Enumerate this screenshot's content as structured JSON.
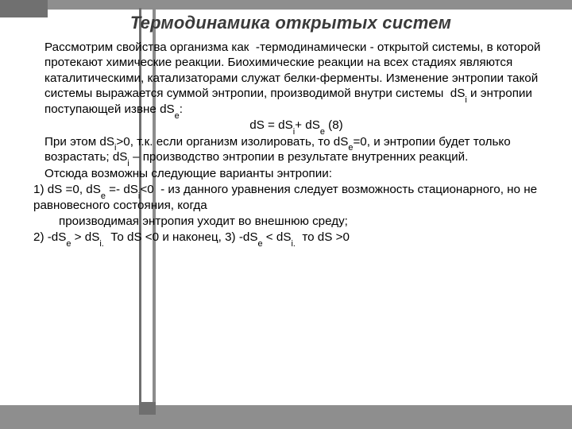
{
  "title_fontsize": 22,
  "body_fontsize": 15.2,
  "line_height": 1.28,
  "text_color": "#000000",
  "title_color": "#3a3a3a",
  "background_color": "#ffffff",
  "frame_gray": "#8e8e8e",
  "accent_gray": "#6f6f6f",
  "title": "Термодинамика открытых систем",
  "para1": "Рассмотрим свойства организма как  -термодинамически - открытой системы, в которой протекают химические реакции. Биохимические реакции на всех стадиях являются каталитическими, катализаторами служат белки-ферменты. Изменение энтропии такой системы выражается суммой энтропии, производимой внутри системы  dSᵢ и энтропии поступающей извне dSₑ:",
  "eq": "dS = dSᵢ+ dSₑ (8)",
  "para2": "При этом dSᵢ>0, т.к. если организм изолировать, то dSₑ=0, и энтропии будет только возрастать; dSᵢ – производство энтропии в результате внутренних реакций.",
  "para3": "Отсюда возможны следующие варианты энтропии:",
  "para4": "1) dS =0, dSₑ =- dSᵢ<0  - из данного уравнения следует возможность стационарного, но не равновесного состояния, когда",
  "para5": "производимая энтропия уходит во внешнюю среду;",
  "para6": "2) -dSₑ > dSᵢ.  То dS <0 и наконец, 3) -dSₑ < dSᵢ.  то dS >0"
}
